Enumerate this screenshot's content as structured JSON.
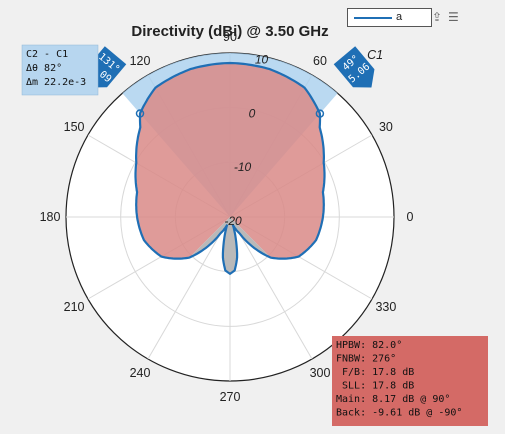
{
  "chart_data": {
    "type": "polar",
    "title": "Directivity (dBi) @ 3.50 GHz",
    "angle_ticks": [
      "0",
      "30",
      "60",
      "90",
      "120",
      "150",
      "180",
      "210",
      "240",
      "270",
      "300",
      "330"
    ],
    "angle_tick_values": [
      0,
      30,
      60,
      90,
      120,
      150,
      180,
      210,
      240,
      270,
      300,
      330
    ],
    "radial_ticks": [
      10,
      0,
      -10,
      -20
    ],
    "rlim": [
      -20,
      10
    ],
    "series": [
      {
        "name": "a",
        "angles_deg": [
          0,
          15,
          30,
          45,
          49,
          60,
          75,
          90,
          105,
          120,
          131,
          135,
          150,
          165,
          180,
          195,
          210,
          225,
          240,
          250,
          255,
          260,
          265,
          270,
          275,
          280,
          285,
          290,
          300,
          315,
          330,
          345
        ],
        "values_dbi": [
          -3.0,
          -2.4,
          -0.2,
          3.2,
          5.06,
          7.3,
          8.0,
          8.17,
          8.0,
          7.3,
          5.09,
          3.2,
          -0.2,
          -2.4,
          -3.0,
          -3.7,
          -5.5,
          -9.5,
          -16.6,
          -18.5,
          -16.0,
          -12.5,
          -10.2,
          -9.61,
          -10.2,
          -12.5,
          -16.0,
          -18.5,
          -16.6,
          -9.5,
          -5.5,
          -3.7
        ],
        "color": "#1f6fb5"
      }
    ],
    "colors": {
      "main_lobe_fill": "#d98a87",
      "back_lobe_fill": "#b9b9b9",
      "beamwidth_shade": "#a9cfee",
      "line": "#1f6fb5"
    },
    "cursors": [
      {
        "name": "C1",
        "angle_deg": 49,
        "value": "5.06",
        "angle_label": "49°"
      },
      {
        "name": "C2",
        "angle_deg": 131,
        "value": "5.09",
        "angle_label": "131°"
      }
    ],
    "cursor_delta": {
      "lines": [
        "C2 - C1",
        "Δθ 82°",
        "Δm 22.2e-3"
      ]
    },
    "beamwidth_span_deg": [
      49,
      131
    ],
    "legend": {
      "label": "a",
      "placement": "top-right"
    },
    "metrics": [
      "HPBW: 82.0°",
      "FNBW: 276°",
      " F/B: 17.8 dB",
      " SLL: 17.8 dB",
      "Main: 8.17 dB @ 90°",
      "Back: -9.61 dB @ -90°"
    ]
  }
}
